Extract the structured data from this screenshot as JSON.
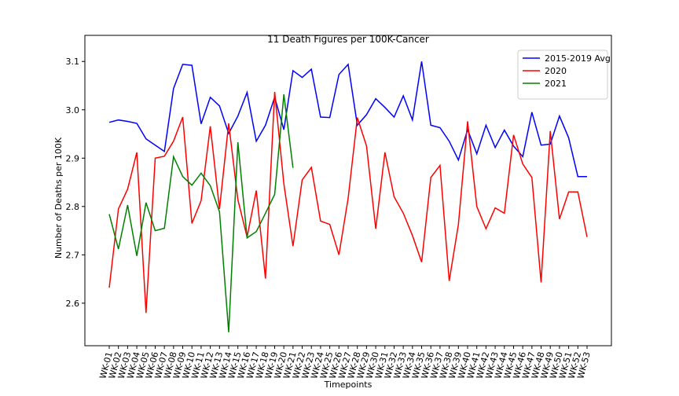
{
  "chart_data": {
    "type": "line",
    "title": "11 Death Figures per 100K-Cancer",
    "x_label": "Timepoints",
    "y_label": "Number of Deaths per 100K",
    "categories": [
      "WK-01",
      "WK-02",
      "WK-03",
      "WK-04",
      "WK-05",
      "WK-06",
      "WK-07",
      "WK-08",
      "WK-09",
      "WK-10",
      "WK-11",
      "WK-12",
      "WK-13",
      "WK-14",
      "WK-15",
      "WK-16",
      "WK-17",
      "WK-18",
      "WK-19",
      "WK-20",
      "WK-21",
      "WK-22",
      "WK-23",
      "WK-24",
      "WK-25",
      "WK-26",
      "WK-27",
      "WK-28",
      "WK-29",
      "WK-30",
      "WK-31",
      "WK-32",
      "WK-33",
      "WK-34",
      "WK-35",
      "WK-36",
      "WK-37",
      "WK-38",
      "WK-39",
      "WK-40",
      "WK-41",
      "WK-42",
      "WK-43",
      "WK-44",
      "WK-45",
      "WK-46",
      "WK-47",
      "WK-48",
      "WK-49",
      "WK-50",
      "WK-51",
      "WK-52",
      "WK-53"
    ],
    "series": [
      {
        "name": "2015-2019 Avg",
        "color": "#0000ff",
        "values": [
          2.974,
          2.979,
          2.976,
          2.972,
          2.94,
          2.927,
          2.914,
          3.044,
          3.094,
          3.092,
          2.971,
          3.026,
          3.008,
          2.951,
          2.987,
          3.036,
          2.935,
          2.968,
          3.026,
          2.959,
          3.081,
          3.067,
          3.084,
          2.985,
          2.984,
          3.073,
          3.094,
          2.968,
          2.99,
          3.023,
          3.005,
          2.985,
          3.029,
          2.979,
          3.1,
          2.968,
          2.963,
          2.935,
          2.896,
          2.959,
          2.909,
          2.968,
          2.922,
          2.958,
          2.925,
          2.903,
          2.995,
          2.927,
          2.929,
          2.987,
          2.942,
          2.862,
          2.862
        ]
      },
      {
        "name": "2020",
        "color": "#ff0000",
        "values": [
          2.632,
          2.795,
          2.836,
          2.912,
          2.58,
          2.9,
          2.904,
          2.935,
          2.985,
          2.765,
          2.812,
          2.966,
          2.795,
          2.972,
          2.814,
          2.737,
          2.833,
          2.651,
          3.037,
          2.847,
          2.718,
          2.855,
          2.881,
          2.77,
          2.763,
          2.7,
          2.817,
          2.984,
          2.925,
          2.754,
          2.912,
          2.82,
          2.786,
          2.74,
          2.685,
          2.86,
          2.885,
          2.646,
          2.763,
          2.976,
          2.8,
          2.754,
          2.797,
          2.786,
          2.948,
          2.888,
          2.86,
          2.643,
          2.956,
          2.774,
          2.83,
          2.83,
          2.737
        ]
      },
      {
        "name": "2021",
        "color": "#008000",
        "values": [
          2.784,
          2.712,
          2.803,
          2.698,
          2.808,
          2.75,
          2.755,
          2.903,
          2.862,
          2.844,
          2.869,
          2.843,
          2.789,
          2.54,
          2.933,
          2.735,
          2.748,
          2.786,
          2.825,
          3.032,
          2.88,
          null,
          null,
          null,
          null,
          null,
          null,
          null,
          null,
          null,
          null,
          null,
          null,
          null,
          null,
          null,
          null,
          null,
          null,
          null,
          null,
          null,
          null,
          null,
          null,
          null,
          null,
          null,
          null,
          null,
          null,
          null,
          null
        ]
      }
    ],
    "ylim": [
      2.512,
      3.154
    ],
    "yticks": [
      2.6,
      2.7,
      2.8,
      2.9,
      {
        "value": 3,
        "label": "3.0"
      },
      3.1
    ],
    "legend": "upper right",
    "grid": false
  }
}
